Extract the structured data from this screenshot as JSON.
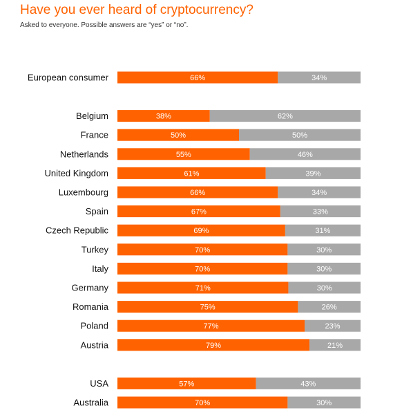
{
  "header": {
    "title": "Have you ever heard of cryptocurrency?",
    "subtitle": "Asked to everyone. Possible answers are “yes” or “no”."
  },
  "colors": {
    "yes": "#ff6200",
    "no": "#a8a8a8",
    "label_text": "#ffffff"
  },
  "chart_data": {
    "type": "bar",
    "orientation": "horizontal",
    "stacked": true,
    "normalized_to_100": true,
    "grid": false,
    "value_suffix": "%",
    "categories": [
      "European consumer",
      "Belgium",
      "France",
      "Netherlands",
      "United Kingdom",
      "Luxembourg",
      "Spain",
      "Czech Republic",
      "Turkey",
      "Italy",
      "Germany",
      "Romania",
      "Poland",
      "Austria",
      "USA",
      "Australia"
    ],
    "groups": [
      [
        "European consumer"
      ],
      [
        "Belgium",
        "France",
        "Netherlands",
        "United Kingdom",
        "Luxembourg",
        "Spain",
        "Czech Republic",
        "Turkey",
        "Italy",
        "Germany",
        "Romania",
        "Poland",
        "Austria"
      ],
      [
        "USA",
        "Australia"
      ]
    ],
    "series": [
      {
        "values": [
          66,
          38,
          50,
          55,
          61,
          66,
          67,
          69,
          70,
          70,
          71,
          75,
          77,
          79,
          57,
          70
        ]
      },
      {
        "values": [
          34,
          62,
          50,
          46,
          39,
          34,
          33,
          31,
          30,
          30,
          30,
          26,
          23,
          21,
          43,
          30
        ]
      }
    ]
  }
}
